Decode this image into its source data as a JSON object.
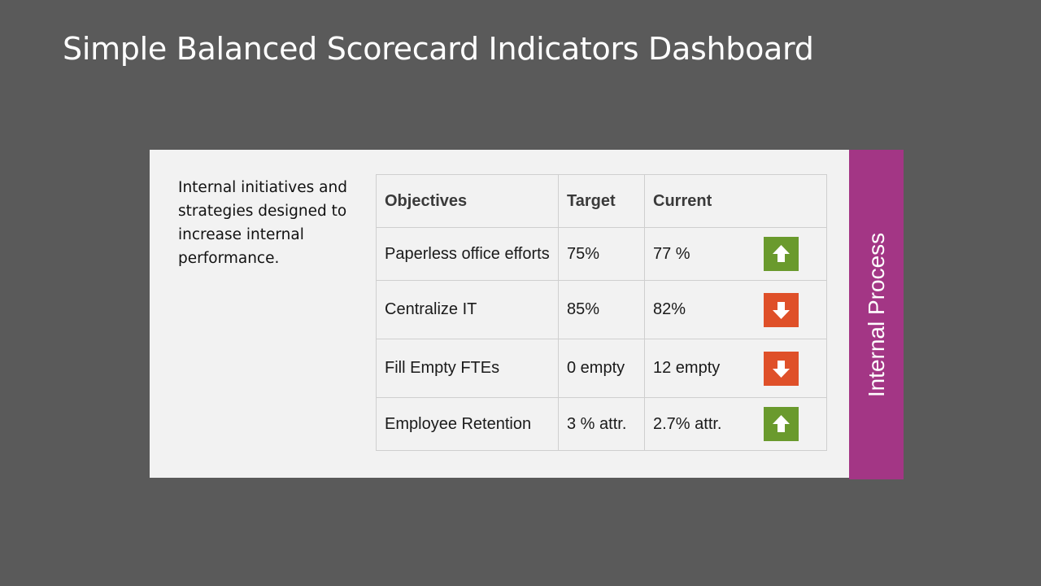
{
  "title": "Simple Balanced Scorecard Indicators Dashboard",
  "description": "Internal initiatives and strategies designed to increase internal performance.",
  "side_label": "Internal Process",
  "colors": {
    "background": "#5a5a5a",
    "panel": "#f2f2f2",
    "side_tab": "#a33685",
    "trend_up": "#6a9a2d",
    "trend_down": "#df5029"
  },
  "table": {
    "headers": {
      "objectives": "Objectives",
      "target": "Target",
      "current": "Current"
    },
    "rows": [
      {
        "objective": "Paperless office efforts",
        "target": "75%",
        "current": "77 %",
        "trend": "up",
        "icon": "arrow-up-icon"
      },
      {
        "objective": "Centralize IT",
        "target": "85%",
        "current": "82%",
        "trend": "down",
        "icon": "arrow-down-icon"
      },
      {
        "objective": "Fill Empty FTEs",
        "target": "0 empty",
        "current": "12 empty",
        "trend": "down",
        "icon": "arrow-down-icon"
      },
      {
        "objective": "Employee Retention",
        "target": "3 % attr.",
        "current": "2.7% attr.",
        "trend": "up",
        "icon": "arrow-up-icon"
      }
    ]
  }
}
